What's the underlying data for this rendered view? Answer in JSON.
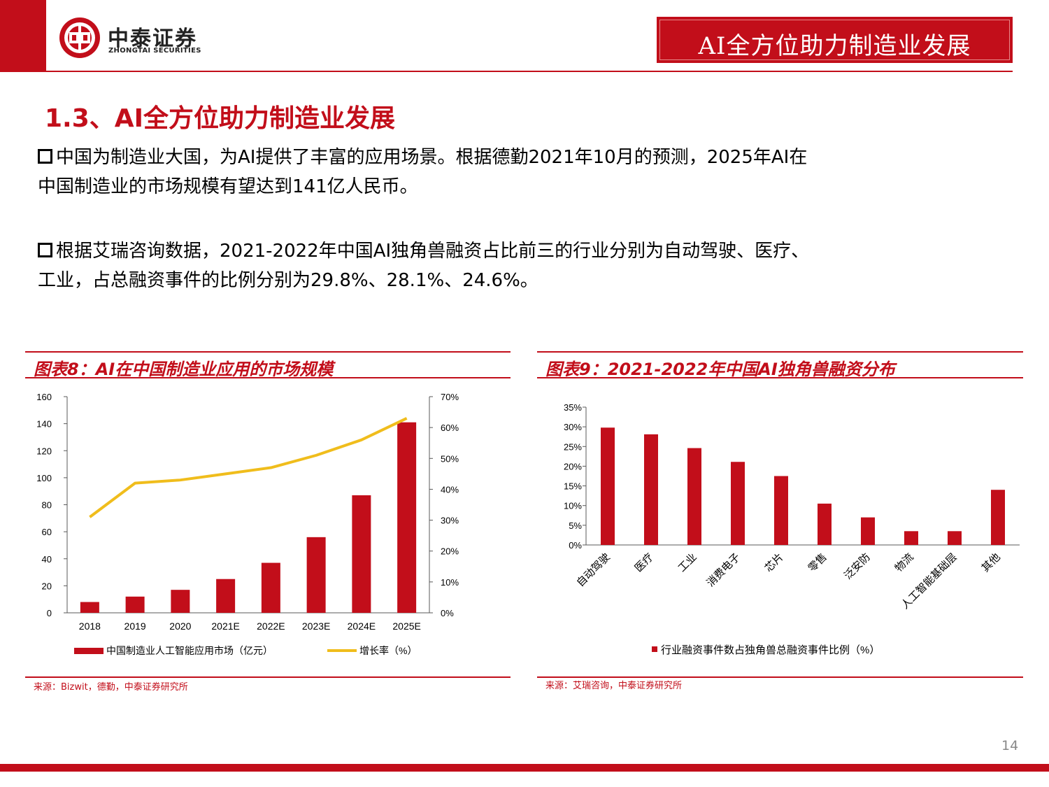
{
  "brand": {
    "name_cn": "中泰证券",
    "name_en": "ZHONGTAI SECURITIES"
  },
  "header": {
    "title": "AI全方位助力制造业发展"
  },
  "section_title": "1.3、AI全方位助力制造业发展",
  "paragraphs": [
    {
      "line1": "中国为制造业大国，为AI提供了丰富的应用场景。根据德勤2021年10月的预测，2025年AI在",
      "line2": "中国制造业的市场规模有望达到141亿人民币。"
    },
    {
      "line1": "根据艾瑞咨询数据，2021-2022年中国AI独角兽融资占比前三的行业分别为自动驾驶、医疗、",
      "line2": "工业，占总融资事件的比例分别为29.8%、28.1%、24.6%。"
    }
  ],
  "colors": {
    "brand_red": "#c20e1a",
    "line_yellow": "#f0bd1c"
  },
  "charts": {
    "left": {
      "title": "图表8：AI在中国制造业应用的市场规模",
      "source": "来源：Bizwit，德勤，中泰证券研究所"
    },
    "right": {
      "title": "图表9：2021-2022年中国AI独角兽融资分布",
      "source": "来源：艾瑞咨询，中泰证券研究所"
    }
  },
  "chart_data": [
    {
      "type": "bar",
      "categories": [
        "2018",
        "2019",
        "2020",
        "2021E",
        "2022E",
        "2023E",
        "2024E",
        "2025E"
      ],
      "series": [
        {
          "name": "中国制造业人工智能应用市场（亿元）",
          "type": "bar",
          "axis": "left",
          "values": [
            8,
            12,
            17,
            25,
            37,
            56,
            87,
            141
          ]
        },
        {
          "name": "增长率（%）",
          "type": "line",
          "axis": "right",
          "values": [
            31,
            42,
            43,
            45,
            47,
            51,
            56,
            63
          ]
        }
      ],
      "ylim": [
        0,
        160
      ],
      "y_ticks": [
        "0",
        "20",
        "40",
        "60",
        "80",
        "100",
        "120",
        "140",
        "160"
      ],
      "y2lim": [
        0,
        70
      ],
      "y2_ticks": [
        "0%",
        "10%",
        "20%",
        "30%",
        "40%",
        "50%",
        "60%",
        "70%"
      ],
      "legend": "bottom",
      "grid": false
    },
    {
      "type": "bar",
      "categories": [
        "自动驾驶",
        "医疗",
        "工业",
        "消费电子",
        "芯片",
        "零售",
        "泛安防",
        "物流",
        "人工智能基础层",
        "其他"
      ],
      "series": [
        {
          "name": "行业融资事件数占独角兽总融资事件比例（%）",
          "values": [
            29.8,
            28.1,
            24.6,
            21.1,
            17.5,
            10.5,
            7.0,
            3.5,
            3.5,
            14.0
          ]
        }
      ],
      "ylim": [
        0,
        35
      ],
      "y_ticks": [
        "0%",
        "5%",
        "10%",
        "15%",
        "20%",
        "25%",
        "30%",
        "35%"
      ],
      "legend": "bottom",
      "grid": false
    }
  ],
  "page_number": "14"
}
